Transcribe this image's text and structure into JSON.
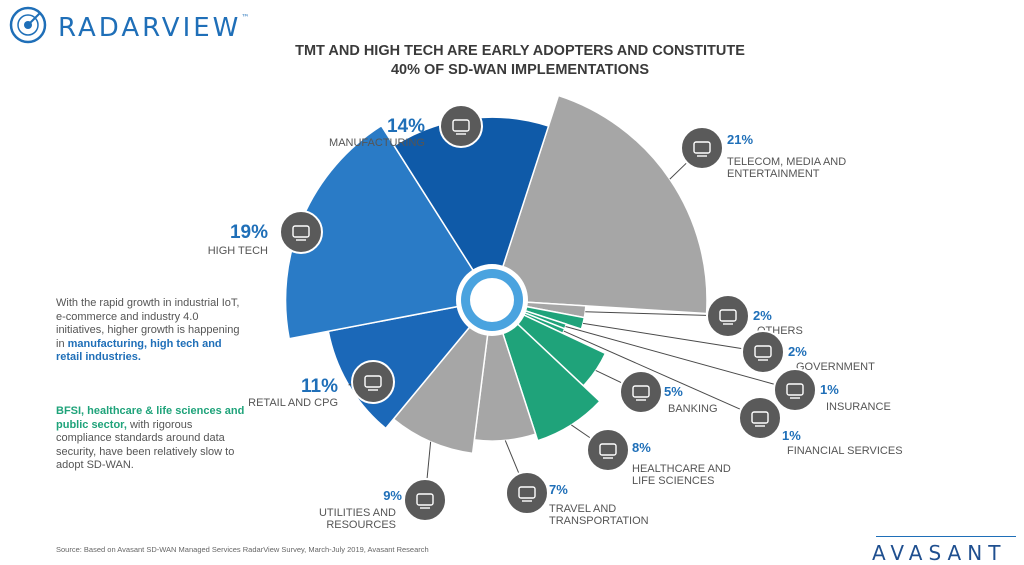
{
  "brand": {
    "name": "RADARVIEW",
    "tm": "™",
    "footer_brand": "AVASANT"
  },
  "header": {
    "title_line1": "TMT AND HIGH TECH ARE EARLY ADOPTERS AND CONSTITUTE",
    "title_line2": "40% OF SD-WAN IMPLEMENTATIONS"
  },
  "colors": {
    "blue_dark": "#0f5aa8",
    "blue": "#2a7bc6",
    "grey": "#a6a6a6",
    "green": "#1fa37a",
    "icon_bg": "#5a5a5a"
  },
  "chart_data": {
    "type": "pie",
    "title": "TMT AND HIGH TECH ARE EARLY ADOPTERS AND CONSTITUTE 40% OF SD-WAN IMPLEMENTATIONS",
    "slices": [
      {
        "label": "TELECOM, MEDIA AND ENTERTAINMENT",
        "value": 21,
        "pct_text": "21%",
        "color": "grey",
        "icon": "satellite-dish-icon"
      },
      {
        "label": "OTHERS",
        "value": 2,
        "pct_text": "2%",
        "color": "grey",
        "icon": "more-dots-icon"
      },
      {
        "label": "GOVERNMENT",
        "value": 2,
        "pct_text": "2%",
        "color": "green",
        "icon": "government-building-icon"
      },
      {
        "label": "INSURANCE",
        "value": 1,
        "pct_text": "1%",
        "color": "green",
        "icon": "insurance-shield-icon"
      },
      {
        "label": "FINANCIAL SERVICES",
        "value": 1,
        "pct_text": "1%",
        "color": "green",
        "icon": "financial-chart-icon"
      },
      {
        "label": "BANKING",
        "value": 5,
        "pct_text": "5%",
        "color": "green",
        "icon": "banking-card-icon"
      },
      {
        "label": "HEALTHCARE AND LIFE SCIENCES",
        "value": 8,
        "pct_text": "8%",
        "color": "green",
        "icon": "microscope-icon"
      },
      {
        "label": "TRAVEL AND TRANSPORTATION",
        "value": 7,
        "pct_text": "7%",
        "color": "grey",
        "icon": "airplane-icon"
      },
      {
        "label": "UTILITIES AND RESOURCES",
        "value": 9,
        "pct_text": "9%",
        "color": "grey",
        "icon": "utilities-hands-icon"
      },
      {
        "label": "RETAIL AND CPG",
        "value": 11,
        "pct_text": "11%",
        "color": "blue",
        "icon": "shopping-cart-icon"
      },
      {
        "label": "HIGH TECH",
        "value": 19,
        "pct_text": "19%",
        "color": "blue",
        "icon": "robot-arm-icon"
      },
      {
        "label": "MANUFACTURING",
        "value": 14,
        "pct_text": "14%",
        "color": "blue",
        "icon": "factory-icon"
      }
    ]
  },
  "notes": {
    "para1_pre": "With the rapid growth in industrial IoT, e-commerce and industry 4.0 initiatives, higher growth is happening in ",
    "para1_hl": "manufacturing, high tech and retail industries.",
    "para2_hl": "BFSI, healthcare & life sciences and public sector,",
    "para2_post": " with rigorous compliance standards around data security, have been relatively slow to adopt SD-WAN."
  },
  "source": "Source: Based on Avasant SD-WAN Managed Services RadarView Survey, March-July 2019, Avasant Research"
}
